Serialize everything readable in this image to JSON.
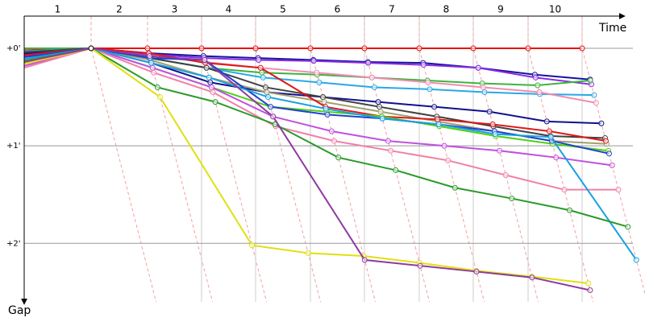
{
  "chart_data": {
    "type": "line",
    "x_label": "Time",
    "y_label": "Gap",
    "categories": [
      "1",
      "2",
      "3",
      "4",
      "5",
      "6",
      "7",
      "8",
      "9",
      "10"
    ],
    "ylim": [
      -0.33,
      2.6
    ],
    "yticks": [
      {
        "value": 0,
        "label": "+0'"
      },
      {
        "value": 1,
        "label": "+1'"
      },
      {
        "value": 2,
        "label": "+2'"
      }
    ],
    "grid": true,
    "series": [
      {
        "color": "#e81010",
        "start": 0.02,
        "values": [
          0,
          0,
          0,
          0,
          0,
          0,
          0,
          0,
          0,
          0
        ]
      },
      {
        "color": "#1414a0",
        "start": 0.05,
        "values": [
          0,
          0.05,
          0.08,
          0.1,
          0.12,
          0.14,
          0.15,
          0.2,
          0.27,
          0.32
        ]
      },
      {
        "color": "#8a2be2",
        "start": 0.08,
        "values": [
          0,
          0.06,
          0.1,
          0.12,
          0.13,
          0.15,
          0.17,
          0.2,
          0.3,
          0.37
        ]
      },
      {
        "color": "#3cb43c",
        "start": 0.0,
        "values": [
          0,
          0.1,
          0.2,
          0.25,
          0.27,
          0.3,
          0.33,
          0.36,
          0.38,
          0.33
        ]
      },
      {
        "color": "#28a8e8",
        "start": 0.03,
        "values": [
          0,
          0.1,
          0.2,
          0.3,
          0.35,
          0.4,
          0.42,
          0.45,
          0.47,
          0.48
        ]
      },
      {
        "color": "#f08cb4",
        "start": 0.1,
        "values": [
          0,
          0.08,
          0.14,
          0.2,
          0.25,
          0.3,
          0.35,
          0.4,
          0.45,
          0.56
        ]
      },
      {
        "color": "#10108c",
        "start": 0.06,
        "values": [
          0,
          0.15,
          0.35,
          0.45,
          0.5,
          0.55,
          0.6,
          0.65,
          0.75,
          0.77
        ]
      },
      {
        "color": "#404040",
        "start": 0.04,
        "values": [
          0,
          0.1,
          0.2,
          0.4,
          0.5,
          0.6,
          0.7,
          0.8,
          0.9,
          0.92
        ]
      },
      {
        "color": "#a0a070",
        "start": 0.12,
        "values": [
          0,
          0.12,
          0.3,
          0.45,
          0.55,
          0.65,
          0.75,
          0.85,
          0.95,
          0.98
        ]
      },
      {
        "color": "#e01818",
        "start": 0.07,
        "values": [
          0,
          0.05,
          0.15,
          0.2,
          0.6,
          0.7,
          0.73,
          0.78,
          0.85,
          0.95
        ]
      },
      {
        "color": "#50d010",
        "start": 0.15,
        "values": [
          0,
          0.2,
          0.4,
          0.6,
          0.65,
          0.7,
          0.8,
          0.9,
          0.98,
          1.05
        ]
      },
      {
        "color": "#2040d0",
        "start": 0.09,
        "values": [
          0,
          0.1,
          0.12,
          0.6,
          0.68,
          0.72,
          0.78,
          0.85,
          0.95,
          1.08
        ]
      },
      {
        "color": "#c050e0",
        "start": 0.18,
        "values": [
          0,
          0.2,
          0.4,
          0.7,
          0.85,
          0.95,
          1.0,
          1.05,
          1.12,
          1.2
        ]
      },
      {
        "color": "#f080a8",
        "start": 0.2,
        "values": [
          0,
          0.25,
          0.45,
          0.8,
          0.95,
          1.05,
          1.15,
          1.3,
          1.45,
          1.45
        ]
      },
      {
        "color": "#18a0e0",
        "start": 0.11,
        "values": [
          0,
          0.15,
          0.3,
          0.5,
          0.62,
          0.72,
          0.78,
          0.88,
          0.91,
          2.17
        ]
      },
      {
        "color": "#2a9a2a",
        "start": 0.13,
        "values": [
          0,
          0.4,
          0.55,
          0.78,
          1.12,
          1.25,
          1.43,
          1.54,
          1.66,
          1.83
        ]
      },
      {
        "color": "#e0e010",
        "start": 0.16,
        "values": [
          0,
          0.5,
          2.02,
          2.1,
          2.13,
          2.2,
          2.28,
          2.34,
          2.41,
          null
        ]
      },
      {
        "color": "#8e3a9e",
        "start": 0.14,
        "values": [
          0,
          0.08,
          0.12,
          0.7,
          2.17,
          2.23,
          2.29,
          2.35,
          2.48,
          null
        ]
      }
    ]
  }
}
